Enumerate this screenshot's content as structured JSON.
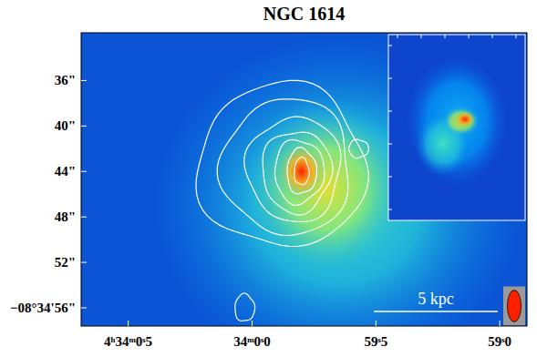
{
  "chart_data": {
    "type": "image",
    "title": "NGC 1614",
    "xlim": [
      0.69,
      -1.11
    ],
    "xticks": [
      {
        "value": 0.5,
        "label": "4ʰ34ᵐ0ˢ5"
      },
      {
        "value": 0,
        "label": "34ᵐ0ˢ0"
      },
      {
        "value": -0.5,
        "label": "59ˢ5"
      },
      {
        "value": -1,
        "label": "59ˢ0"
      }
    ],
    "ylim": [
      31.8,
      57.6
    ],
    "yticks": [
      {
        "value": 36,
        "label": "36\""
      },
      {
        "value": 40,
        "label": "40\""
      },
      {
        "value": 44,
        "label": "44\""
      },
      {
        "value": 48,
        "label": "48\""
      },
      {
        "value": 52,
        "label": "52\""
      },
      {
        "value": 56,
        "label": "−08°34'56\""
      }
    ],
    "emission": [
      {
        "x": -0.35,
        "y": 47,
        "rx": 0.75,
        "ry": 15,
        "peak": 0.45
      },
      {
        "x": -0.3,
        "y": 45.5,
        "rx": 0.35,
        "ry": 8,
        "peak": 0.68
      },
      {
        "x": -0.2,
        "y": 44,
        "rx": 0.1,
        "ry": 2.6,
        "peak": 1.0
      }
    ],
    "contours": [
      {
        "x": -0.2,
        "y": 44,
        "rx": 0.03,
        "ry": 1.2
      },
      {
        "x": -0.2,
        "y": 44,
        "rx": 0.06,
        "ry": 2.0
      },
      {
        "x": -0.19,
        "y": 44,
        "rx": 0.1,
        "ry": 2.8
      },
      {
        "x": -0.18,
        "y": 44,
        "rx": 0.14,
        "ry": 3.6
      },
      {
        "x": -0.17,
        "y": 43.8,
        "rx": 0.19,
        "ry": 4.6
      },
      {
        "x": -0.14,
        "y": 43.6,
        "rx": 0.26,
        "ry": 6.0
      },
      {
        "x": -0.12,
        "y": 43.5,
        "rx": 0.34,
        "ry": 7.2
      },
      {
        "x": 0.03,
        "y": 56,
        "rx": 0.04,
        "ry": 1.2
      },
      {
        "x": -0.43,
        "y": 42,
        "rx": 0.04,
        "ry": 0.8
      }
    ],
    "beam": {
      "major": 2.8,
      "minor": 1.2
    },
    "scale_bar": {
      "label": "5 kpc",
      "length": 0.5
    }
  }
}
